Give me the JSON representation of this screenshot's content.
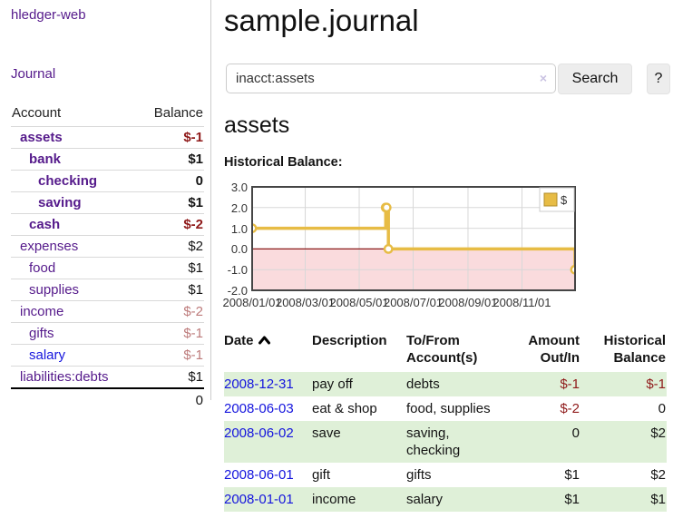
{
  "sidebar": {
    "brand": "hledger-web",
    "journal_link": "Journal",
    "accounts_table": {
      "headers": {
        "account": "Account",
        "balance": "Balance"
      },
      "rows": [
        {
          "name": "assets",
          "balance": "$-1",
          "indent": 1,
          "bold": true,
          "balance_class": "neg-strong",
          "link_blue": false
        },
        {
          "name": "bank",
          "balance": "$1",
          "indent": 2,
          "bold": true,
          "balance_class": "",
          "link_blue": false
        },
        {
          "name": "checking",
          "balance": "0",
          "indent": 3,
          "bold": true,
          "balance_class": "",
          "link_blue": false
        },
        {
          "name": "saving",
          "balance": "$1",
          "indent": 3,
          "bold": true,
          "balance_class": "",
          "link_blue": false
        },
        {
          "name": "cash",
          "balance": "$-2",
          "indent": 2,
          "bold": true,
          "balance_class": "neg-strong",
          "link_blue": false
        },
        {
          "name": "expenses",
          "balance": "$2",
          "indent": 1,
          "bold": false,
          "balance_class": "",
          "link_blue": false
        },
        {
          "name": "food",
          "balance": "$1",
          "indent": 2,
          "bold": false,
          "balance_class": "",
          "link_blue": false
        },
        {
          "name": "supplies",
          "balance": "$1",
          "indent": 2,
          "bold": false,
          "balance_class": "",
          "link_blue": false
        },
        {
          "name": "income",
          "balance": "$-2",
          "indent": 1,
          "bold": false,
          "balance_class": "neg-weak",
          "link_blue": false
        },
        {
          "name": "gifts",
          "balance": "$-1",
          "indent": 2,
          "bold": false,
          "balance_class": "neg-weak",
          "link_blue": false
        },
        {
          "name": "salary",
          "balance": "$-1",
          "indent": 2,
          "bold": false,
          "balance_class": "neg-weak",
          "link_blue": true
        },
        {
          "name": "liabilities:debts",
          "balance": "$1",
          "indent": 1,
          "bold": false,
          "balance_class": "",
          "link_blue": false
        }
      ],
      "total": "0"
    }
  },
  "header": {
    "title": "sample.journal"
  },
  "search": {
    "value": "inacct:assets",
    "clear_icon": "×",
    "search_button": "Search",
    "help_button": "?"
  },
  "register": {
    "account_title": "assets",
    "chart_label": "Historical Balance:",
    "table": {
      "headers": {
        "date": "Date",
        "description": "Description",
        "accounts": "To/From Account(s)",
        "amount": "Amount Out/In",
        "balance": "Historical Balance"
      },
      "rows": [
        {
          "date": "2008-12-31",
          "description": "pay off",
          "accounts": "debts",
          "amount": "$-1",
          "amount_neg": true,
          "balance": "$-1",
          "balance_neg": true
        },
        {
          "date": "2008-06-03",
          "description": "eat & shop",
          "accounts": "food, supplies",
          "amount": "$-2",
          "amount_neg": true,
          "balance": "0",
          "balance_neg": false
        },
        {
          "date": "2008-06-02",
          "description": "save",
          "accounts": "saving, checking",
          "amount": "0",
          "amount_neg": false,
          "balance": "$2",
          "balance_neg": false
        },
        {
          "date": "2008-06-01",
          "description": "gift",
          "accounts": "gifts",
          "amount": "$1",
          "amount_neg": false,
          "balance": "$2",
          "balance_neg": false
        },
        {
          "date": "2008-01-01",
          "description": "income",
          "accounts": "salary",
          "amount": "$1",
          "amount_neg": false,
          "balance": "$1",
          "balance_neg": false
        }
      ]
    }
  },
  "chart_data": {
    "type": "line",
    "title": "Historical Balance:",
    "step": "after",
    "xlim_days": [
      0,
      365
    ],
    "ylim": [
      -2,
      3
    ],
    "x_ticks": [
      {
        "label": "2008/01/01",
        "day": 0
      },
      {
        "label": "2008/03/01",
        "day": 60
      },
      {
        "label": "2008/05/01",
        "day": 121
      },
      {
        "label": "2008/07/01",
        "day": 182
      },
      {
        "label": "2008/09/01",
        "day": 244
      },
      {
        "label": "2008/11/01",
        "day": 305
      }
    ],
    "y_ticks": [
      {
        "label": "3.0",
        "value": 3
      },
      {
        "label": "2.0",
        "value": 2
      },
      {
        "label": "1.0",
        "value": 1
      },
      {
        "label": "0.0",
        "value": 0
      },
      {
        "label": "-1.0",
        "value": -1
      },
      {
        "label": "-2.0",
        "value": -2
      }
    ],
    "points": [
      {
        "date": "2008-01-01",
        "day": 0,
        "value": 1
      },
      {
        "date": "2008-06-01",
        "day": 151,
        "value": 2
      },
      {
        "date": "2008-06-02",
        "day": 152,
        "value": 2
      },
      {
        "date": "2008-06-03",
        "day": 154,
        "value": 0
      },
      {
        "date": "2008-12-31",
        "day": 365,
        "value": -1
      }
    ],
    "legend": {
      "label": "$",
      "position": "top-right"
    },
    "colors": {
      "line": "#e7bc45",
      "marker_fill": "#ffffff",
      "negative_area": "#fadbdd",
      "zero_line": "#8b1a1a",
      "grid": "#d8d8d8",
      "border": "#454545",
      "legend_swatch": "#e7bc45",
      "legend_swatch_border": "#b08c2a"
    }
  }
}
